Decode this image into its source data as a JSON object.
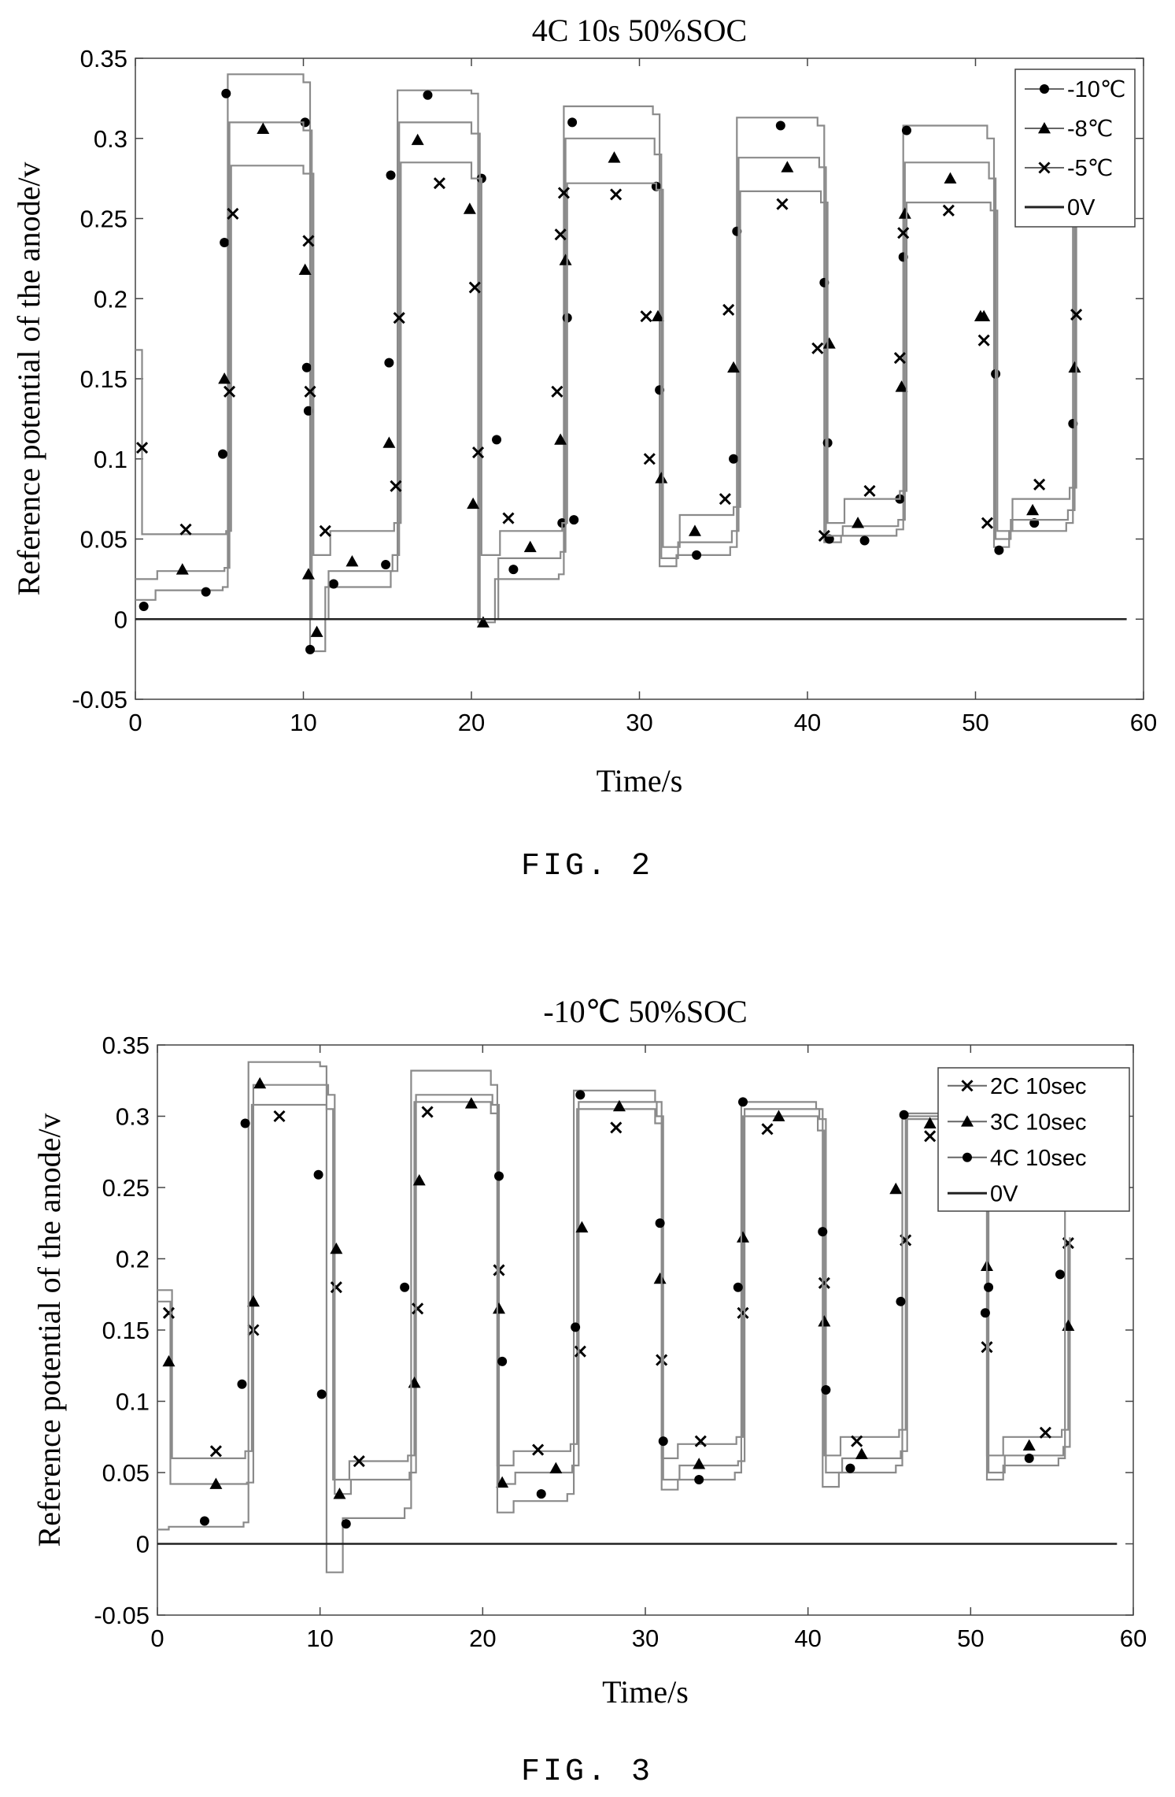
{
  "chart_data": [
    {
      "type": "line",
      "title": "4C 10s 50%SOC",
      "xlabel": "Time/s",
      "ylabel": "Reference potential of the anode/v",
      "xlim": [
        0,
        60
      ],
      "ylim": [
        -0.05,
        0.35
      ],
      "xticks": [
        "0",
        "10",
        "20",
        "30",
        "40",
        "50",
        "60"
      ],
      "yticks": [
        "-0.05",
        "0",
        "0.05",
        "0.1",
        "0.15",
        "0.2",
        "0.25",
        "0.3",
        "0.35"
      ],
      "grid": false,
      "legend_position": "top-right",
      "caption": "FIG. 2",
      "series": [
        {
          "name": "-10℃",
          "marker": "circle",
          "x": [
            0,
            0.3,
            1.2,
            5.2,
            5.5,
            10,
            10.4,
            11.3,
            15.2,
            15.6,
            20,
            20.4,
            21.4,
            25.2,
            25.5,
            30.8,
            31.2,
            32.2,
            35.4,
            35.8,
            40.6,
            41.0,
            42.0,
            45.3,
            45.7,
            50.7,
            51.1,
            52.0,
            55.4,
            55.8
          ],
          "y": [
            0.012,
            0.012,
            0.018,
            0.02,
            0.34,
            0.335,
            -0.02,
            0.02,
            0.03,
            0.33,
            0.328,
            -0.002,
            0.025,
            0.028,
            0.32,
            0.315,
            0.033,
            0.04,
            0.045,
            0.313,
            0.308,
            0.048,
            0.052,
            0.056,
            0.308,
            0.3,
            0.045,
            0.055,
            0.06,
            0.3
          ],
          "marker_x": [
            0.5,
            4.2,
            5.2,
            5.3,
            5.4,
            10.1,
            10.2,
            10.3,
            10.4,
            11.8,
            14.9,
            15.1,
            15.2,
            17.4,
            20.6,
            21.5,
            22.5,
            25.4,
            25.7,
            26.0,
            26.1,
            31.0,
            31.2,
            33.4,
            35.6,
            35.8,
            38.4,
            41.0,
            41.2,
            41.3,
            43.4,
            45.5,
            45.7,
            45.9,
            51.2,
            51.4,
            53.5,
            55.8
          ],
          "marker_y": [
            0.008,
            0.017,
            0.103,
            0.235,
            0.328,
            0.31,
            0.157,
            0.13,
            -0.019,
            0.022,
            0.034,
            0.16,
            0.277,
            0.327,
            0.275,
            0.112,
            0.031,
            0.06,
            0.188,
            0.31,
            0.062,
            0.27,
            0.143,
            0.04,
            0.1,
            0.242,
            0.308,
            0.21,
            0.11,
            0.05,
            0.049,
            0.075,
            0.226,
            0.305,
            0.153,
            0.043,
            0.06,
            0.122
          ]
        },
        {
          "name": "-8℃",
          "marker": "triangle",
          "x": [
            0,
            0.3,
            1.3,
            5.3,
            5.6,
            10,
            10.5,
            11.5,
            15.3,
            15.7,
            20,
            20.5,
            21.6,
            25.3,
            25.6,
            30.9,
            31.3,
            32.3,
            35.5,
            35.9,
            40.7,
            41.1,
            42.1,
            45.4,
            45.8,
            50.8,
            51.2,
            52.1,
            55.5,
            55.9
          ],
          "y": [
            0.025,
            0.025,
            0.03,
            0.032,
            0.31,
            0.305,
            0.0,
            0.03,
            0.04,
            0.31,
            0.303,
            0.0,
            0.038,
            0.042,
            0.3,
            0.29,
            0.038,
            0.048,
            0.055,
            0.288,
            0.282,
            0.052,
            0.058,
            0.062,
            0.285,
            0.275,
            0.05,
            0.062,
            0.068,
            0.28
          ],
          "marker_x": [
            2.8,
            5.3,
            7.6,
            10.1,
            10.3,
            10.8,
            12.9,
            15.1,
            16.8,
            19.9,
            20.1,
            20.7,
            23.5,
            25.3,
            25.6,
            28.5,
            31.1,
            31.3,
            33.3,
            35.6,
            38.8,
            41.3,
            43.0,
            45.6,
            45.8,
            48.5,
            50.3,
            50.5,
            53.4,
            55.9
          ],
          "marker_y": [
            0.031,
            0.15,
            0.306,
            0.218,
            0.028,
            -0.008,
            0.036,
            0.11,
            0.299,
            0.256,
            0.072,
            -0.002,
            0.045,
            0.112,
            0.224,
            0.288,
            0.189,
            0.088,
            0.055,
            0.157,
            0.282,
            0.172,
            0.06,
            0.145,
            0.253,
            0.275,
            0.189,
            0.189,
            0.068,
            0.157
          ]
        },
        {
          "name": "-5℃",
          "marker": "x",
          "x": [
            0,
            0.2,
            0.4,
            5.4,
            5.7,
            10,
            10.6,
            11.6,
            15.4,
            15.8,
            20,
            20.6,
            21.7,
            25.4,
            25.7,
            31.0,
            31.4,
            32.4,
            35.6,
            36.0,
            40.8,
            41.2,
            42.2,
            45.5,
            45.9,
            50.9,
            51.3,
            52.2,
            55.6,
            56.0
          ],
          "y": [
            0.168,
            0.168,
            0.053,
            0.055,
            0.283,
            0.278,
            0.04,
            0.055,
            0.06,
            0.285,
            0.275,
            0.04,
            0.055,
            0.06,
            0.272,
            0.268,
            0.045,
            0.065,
            0.07,
            0.267,
            0.26,
            0.06,
            0.075,
            0.08,
            0.26,
            0.255,
            0.055,
            0.075,
            0.082,
            0.262
          ],
          "marker_x": [
            0.4,
            3.0,
            5.6,
            5.8,
            10.3,
            10.4,
            11.3,
            15.5,
            15.7,
            18.1,
            20.2,
            20.4,
            22.2,
            25.1,
            25.3,
            25.5,
            28.6,
            30.4,
            30.6,
            35.1,
            35.3,
            38.5,
            40.6,
            41.0,
            43.7,
            45.5,
            45.7,
            48.4,
            50.5,
            50.7,
            53.8,
            56.0
          ],
          "marker_y": [
            0.107,
            0.056,
            0.142,
            0.253,
            0.236,
            0.142,
            0.055,
            0.083,
            0.188,
            0.272,
            0.207,
            0.104,
            0.063,
            0.142,
            0.24,
            0.266,
            0.265,
            0.189,
            0.1,
            0.075,
            0.193,
            0.259,
            0.169,
            0.052,
            0.08,
            0.163,
            0.241,
            0.255,
            0.174,
            0.06,
            0.084,
            0.19
          ]
        },
        {
          "name": "0V",
          "marker": "none",
          "x": [
            0,
            59
          ],
          "y": [
            0,
            0
          ],
          "marker_x": [],
          "marker_y": []
        }
      ]
    },
    {
      "type": "line",
      "title": "-10℃ 50%SOC",
      "xlabel": "Time/s",
      "ylabel": "Reference potential of the anode/v",
      "xlim": [
        0,
        60
      ],
      "ylim": [
        -0.05,
        0.35
      ],
      "xticks": [
        "0",
        "10",
        "20",
        "30",
        "40",
        "50",
        "60"
      ],
      "yticks": [
        "-0.05",
        "0",
        "0.05",
        "0.1",
        "0.15",
        "0.2",
        "0.25",
        "0.3",
        "0.35"
      ],
      "grid": false,
      "legend_position": "top-right",
      "caption": "FIG. 3",
      "series": [
        {
          "name": "2C 10sec",
          "marker": "x",
          "x": [
            0,
            0.3,
            0.9,
            5.4,
            5.8,
            10.4,
            10.8,
            11.8,
            15.4,
            15.8,
            20.5,
            20.9,
            21.9,
            25.4,
            25.8,
            30.6,
            31.0,
            32.0,
            35.6,
            36.0,
            40.6,
            41.0,
            42.0,
            45.6,
            46.0,
            50.6,
            51.0,
            52.0,
            55.6,
            56.0
          ],
          "y": [
            0.178,
            0.178,
            0.06,
            0.065,
            0.308,
            0.305,
            0.045,
            0.058,
            0.062,
            0.31,
            0.302,
            0.055,
            0.065,
            0.07,
            0.305,
            0.295,
            0.06,
            0.07,
            0.075,
            0.3,
            0.29,
            0.062,
            0.075,
            0.08,
            0.298,
            0.292,
            0.062,
            0.075,
            0.08,
            0.212
          ],
          "marker_x": [
            0.7,
            3.6,
            5.9,
            7.5,
            11.0,
            12.4,
            16.0,
            16.6,
            21.0,
            23.4,
            26.0,
            28.2,
            31.0,
            33.4,
            36.0,
            37.5,
            41.0,
            43.0,
            46.0,
            47.5,
            51.0,
            54.6,
            56.0
          ],
          "marker_y": [
            0.162,
            0.065,
            0.15,
            0.3,
            0.18,
            0.058,
            0.165,
            0.303,
            0.192,
            0.066,
            0.135,
            0.292,
            0.129,
            0.072,
            0.162,
            0.291,
            0.183,
            0.072,
            0.213,
            0.286,
            0.138,
            0.078,
            0.211
          ]
        },
        {
          "name": "3C 10sec",
          "marker": "triangle",
          "x": [
            0,
            0.3,
            0.8,
            5.5,
            5.9,
            10.5,
            10.9,
            11.9,
            15.5,
            15.9,
            20.6,
            21.0,
            22.0,
            25.5,
            25.9,
            30.7,
            31.1,
            32.1,
            35.7,
            36.1,
            40.7,
            41.1,
            42.1,
            45.7,
            46.1,
            50.7,
            51.1,
            52.1,
            55.7,
            56.1
          ],
          "y": [
            0.17,
            0.17,
            0.042,
            0.043,
            0.322,
            0.315,
            0.035,
            0.045,
            0.05,
            0.315,
            0.308,
            0.042,
            0.05,
            0.055,
            0.31,
            0.3,
            0.045,
            0.055,
            0.058,
            0.305,
            0.298,
            0.05,
            0.06,
            0.065,
            0.3,
            0.295,
            0.05,
            0.062,
            0.068,
            0.215
          ],
          "marker_x": [
            0.7,
            3.6,
            5.9,
            6.3,
            11.0,
            11.2,
            15.8,
            16.1,
            19.3,
            21.0,
            21.2,
            24.5,
            26.1,
            28.4,
            30.9,
            33.3,
            36.0,
            38.2,
            41.0,
            43.3,
            45.4,
            47.5,
            51.0,
            53.6,
            56.0
          ],
          "marker_y": [
            0.128,
            0.042,
            0.17,
            0.323,
            0.207,
            0.035,
            0.113,
            0.255,
            0.309,
            0.165,
            0.043,
            0.053,
            0.222,
            0.307,
            0.186,
            0.056,
            0.215,
            0.3,
            0.156,
            0.063,
            0.249,
            0.295,
            0.195,
            0.069,
            0.153
          ]
        },
        {
          "name": "4C 10sec",
          "marker": "circle",
          "x": [
            0,
            0.3,
            0.7,
            5.3,
            5.6,
            10.0,
            10.4,
            11.4,
            15.2,
            15.6,
            20.5,
            20.9,
            21.9,
            25.2,
            25.6,
            30.6,
            31.0,
            32.0,
            35.5,
            35.9,
            40.5,
            40.9,
            41.9,
            45.4,
            45.8,
            50.6,
            51.0,
            52.0,
            55.4,
            55.8
          ],
          "y": [
            0.01,
            0.01,
            0.012,
            0.015,
            0.338,
            0.335,
            -0.02,
            0.018,
            0.025,
            0.332,
            0.322,
            0.022,
            0.03,
            0.035,
            0.318,
            0.31,
            0.038,
            0.045,
            0.05,
            0.31,
            0.305,
            0.04,
            0.05,
            0.055,
            0.302,
            0.298,
            0.045,
            0.055,
            0.06,
            0.295
          ],
          "marker_x": [
            2.9,
            5.2,
            5.4,
            9.9,
            10.1,
            11.6,
            15.2,
            21.0,
            21.2,
            23.6,
            25.7,
            26.0,
            30.9,
            31.1,
            33.3,
            35.7,
            36.0,
            40.9,
            41.1,
            42.6,
            45.7,
            45.9,
            50.9,
            51.1,
            53.6,
            55.5,
            55.7
          ],
          "marker_y": [
            0.016,
            0.112,
            0.295,
            0.259,
            0.105,
            0.014,
            0.18,
            0.258,
            0.128,
            0.035,
            0.152,
            0.315,
            0.225,
            0.072,
            0.045,
            0.18,
            0.31,
            0.219,
            0.108,
            0.053,
            0.17,
            0.301,
            0.162,
            0.18,
            0.06,
            0.189,
            0.29
          ]
        },
        {
          "name": "0V",
          "marker": "none",
          "x": [
            0,
            59
          ],
          "y": [
            0,
            0
          ],
          "marker_x": [],
          "marker_y": []
        }
      ]
    }
  ]
}
